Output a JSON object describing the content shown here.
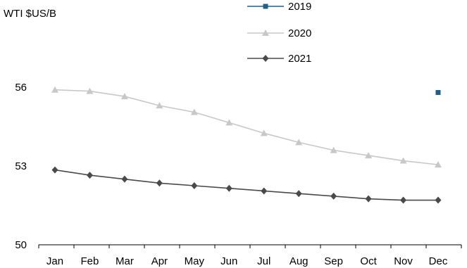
{
  "chart_data": {
    "type": "line",
    "ylabel": "WTI $US/B",
    "categories": [
      "Jan",
      "Feb",
      "Mar",
      "Apr",
      "May",
      "Jun",
      "Jul",
      "Aug",
      "Sep",
      "Oct",
      "Nov",
      "Dec"
    ],
    "y_ticks": [
      "50",
      "53",
      "56"
    ],
    "ylim": [
      50,
      59.2
    ],
    "legend_position": "top-right",
    "grid": false,
    "series": [
      {
        "name": "2019",
        "color": "#1f5f8b",
        "marker": "square",
        "values": [
          null,
          null,
          null,
          null,
          null,
          null,
          null,
          null,
          null,
          null,
          null,
          55.8
        ]
      },
      {
        "name": "2020",
        "color": "#c8c8c8",
        "marker": "triangle",
        "values": [
          55.9,
          55.85,
          55.65,
          55.3,
          55.05,
          54.65,
          54.25,
          53.9,
          53.6,
          53.4,
          53.2,
          53.05
        ]
      },
      {
        "name": "2021",
        "color": "#4a4a4a",
        "marker": "diamond",
        "values": [
          52.85,
          52.65,
          52.5,
          52.35,
          52.25,
          52.15,
          52.05,
          51.95,
          51.85,
          51.75,
          51.7,
          51.7
        ]
      }
    ]
  }
}
